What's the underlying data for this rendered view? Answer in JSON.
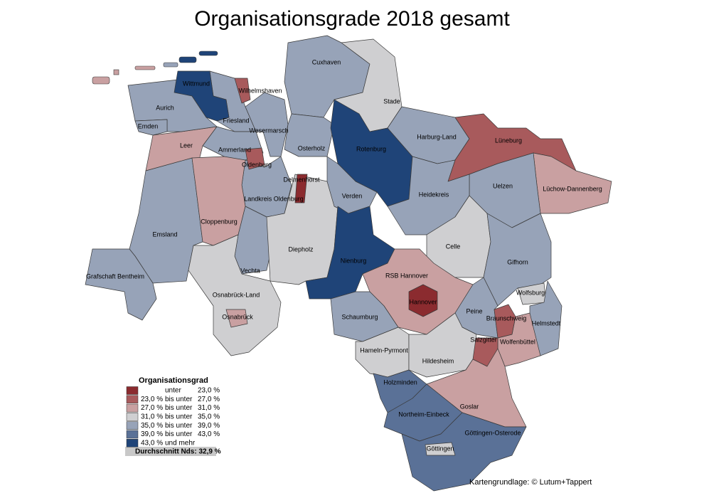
{
  "title": "Organisationsgrade 2018 gesamt",
  "regions": [
    {
      "name": "Emsland",
      "color": "#97a3b8"
    },
    {
      "name": "Grafschaft Bentheim",
      "color": "#97a3b8"
    },
    {
      "name": "Leer",
      "color": "#c9a0a1"
    },
    {
      "name": "Aurich",
      "color": "#97a3b8"
    },
    {
      "name": "Emden",
      "color": "#97a3b8"
    },
    {
      "name": "Friesland",
      "color": "#97a3b8"
    },
    {
      "name": "Wittmund",
      "color": "#1f4478"
    },
    {
      "name": "Wilhelmshaven",
      "color": "#a85a5c"
    },
    {
      "name": "Wesermarsch",
      "color": "#97a3b8"
    },
    {
      "name": "Ammerland",
      "color": "#97a3b8"
    },
    {
      "name": "Landkreis Oldenburg",
      "color": "#97a3b8"
    },
    {
      "name": "Oldenburg",
      "color": "#a85a5c"
    },
    {
      "name": "Cloppenburg",
      "color": "#c9a0a1"
    },
    {
      "name": "Vechta",
      "color": "#97a3b8"
    },
    {
      "name": "Diepholz",
      "color": "#cfcfd1"
    },
    {
      "name": "Osnabrück-Land",
      "color": "#cfcfd1"
    },
    {
      "name": "Osnabrück",
      "color": "#c9a0a1"
    },
    {
      "name": "Cuxhaven",
      "color": "#97a3b8"
    },
    {
      "name": "Stade",
      "color": "#cfcfd1"
    },
    {
      "name": "Osterholz",
      "color": "#97a3b8"
    },
    {
      "name": "Rotenburg",
      "color": "#1f4478"
    },
    {
      "name": "Verden",
      "color": "#97a3b8"
    },
    {
      "name": "Harburg-Land",
      "color": "#97a3b8"
    },
    {
      "name": "Lüneburg",
      "color": "#a85a5c"
    },
    {
      "name": "Lüchow-Dannenberg",
      "color": "#c9a0a1"
    },
    {
      "name": "Uelzen",
      "color": "#97a3b8"
    },
    {
      "name": "Heidekreis",
      "color": "#97a3b8"
    },
    {
      "name": "Celle",
      "color": "#cfcfd1"
    },
    {
      "name": "Gifhorn",
      "color": "#97a3b8"
    },
    {
      "name": "Wolfsburg",
      "color": "#cfcfd1"
    },
    {
      "name": "Nienburg",
      "color": "#1f4478"
    },
    {
      "name": "RSB Hannover",
      "color": "#c9a0a1"
    },
    {
      "name": "Hannover",
      "color": "#8b2b2f"
    },
    {
      "name": "Schaumburg",
      "color": "#97a3b8"
    },
    {
      "name": "Peine",
      "color": "#97a3b8"
    },
    {
      "name": "Helmstedt",
      "color": "#97a3b8"
    },
    {
      "name": "Wolfenbüttel",
      "color": "#c9a0a1"
    },
    {
      "name": "Braunschweig",
      "color": "#a85a5c"
    },
    {
      "name": "Salzgitter",
      "color": "#a85a5c"
    },
    {
      "name": "Hameln-Pyrmont",
      "color": "#cfcfd1"
    },
    {
      "name": "Hildesheim",
      "color": "#cfcfd1"
    },
    {
      "name": "Holzminden",
      "color": "#5a7197"
    },
    {
      "name": "Goslar",
      "color": "#c9a0a1"
    },
    {
      "name": "Northeim-Einbeck",
      "color": "#5a7197"
    },
    {
      "name": "Göttingen-Osterode",
      "color": "#5a7197"
    },
    {
      "name": "Göttingen",
      "color": "#cfcfd1"
    },
    {
      "name": "Delmenhorst",
      "color": "#8b2b2f"
    }
  ],
  "legend": {
    "title": "Organisationsgrad",
    "rows": [
      {
        "color": "#8b2b2f",
        "connector": "unter",
        "to": "23,0 %"
      },
      {
        "color": "#a85a5c",
        "from": "23,0 %",
        "connector": "bis unter",
        "to": "27,0 %"
      },
      {
        "color": "#c9a0a1",
        "from": "27,0 %",
        "connector": "bis unter",
        "to": "31,0 %"
      },
      {
        "color": "#cfcfd1",
        "from": "31,0 %",
        "connector": "bis unter",
        "to": "35,0 %"
      },
      {
        "color": "#97a3b8",
        "from": "35,0 %",
        "connector": "bis unter",
        "to": "39,0 %"
      },
      {
        "color": "#5a7197",
        "from": "39,0 %",
        "connector": "bis unter",
        "to": "43,0 %"
      },
      {
        "color": "#1f4478",
        "from": "43,0 %",
        "connector": "und mehr"
      }
    ],
    "average": "Durchschnitt Nds: 32,9 %"
  },
  "credit": "Kartengrundlage: © Lutum+Tappert"
}
